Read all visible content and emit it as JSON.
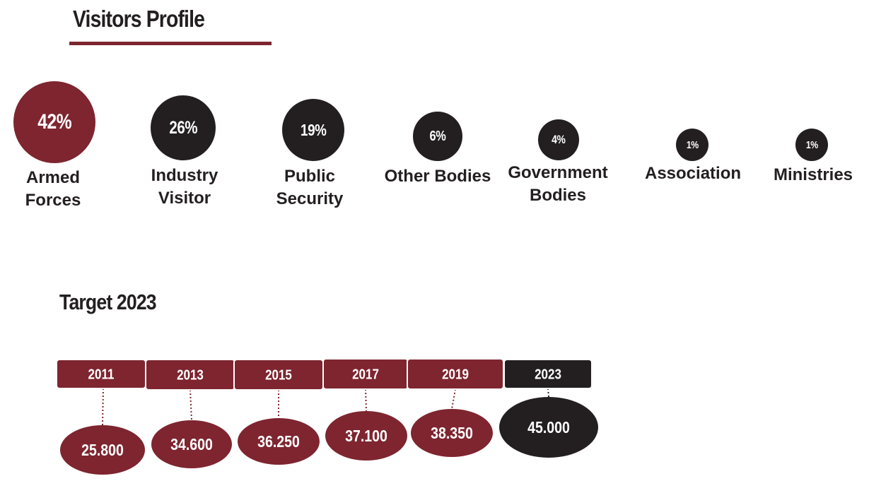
{
  "visitors_title": "Visitors Profile",
  "target_title": "Target 2023",
  "colors": {
    "maroon": "#7e2530",
    "dark": "#231f20",
    "accent_line": "#7e2530"
  },
  "chart_data": [
    {
      "type": "bubble",
      "title": "Visitors Profile",
      "unit": "%",
      "items": [
        {
          "label": "Armed Forces",
          "value": 42,
          "display": "42%",
          "color": "#7e2530"
        },
        {
          "label": "Industry Visitor",
          "value": 26,
          "display": "26%",
          "color": "#231f20"
        },
        {
          "label": "Public Security",
          "value": 19,
          "display": "19%",
          "color": "#231f20"
        },
        {
          "label": "Other Bodies",
          "value": 6,
          "display": "6%",
          "color": "#231f20"
        },
        {
          "label": "Government Bodies",
          "value": 4,
          "display": "4%",
          "color": "#231f20"
        },
        {
          "label": "Association",
          "value": 1,
          "display": "1%",
          "color": "#231f20"
        },
        {
          "label": "Ministries",
          "value": 1,
          "display": "1%",
          "color": "#231f20"
        }
      ]
    },
    {
      "type": "timeline",
      "title": "Target 2023",
      "items": [
        {
          "year": "2011",
          "value": 25800,
          "display": "25.800",
          "color": "#7e2530"
        },
        {
          "year": "2013",
          "value": 34600,
          "display": "34.600",
          "color": "#7e2530"
        },
        {
          "year": "2015",
          "value": 36250,
          "display": "36.250",
          "color": "#7e2530"
        },
        {
          "year": "2017",
          "value": 37100,
          "display": "37.100",
          "color": "#7e2530"
        },
        {
          "year": "2019",
          "value": 38350,
          "display": "38.350",
          "color": "#7e2530"
        },
        {
          "year": "2023",
          "value": 45000,
          "display": "45.000",
          "color": "#231f20"
        }
      ]
    }
  ]
}
